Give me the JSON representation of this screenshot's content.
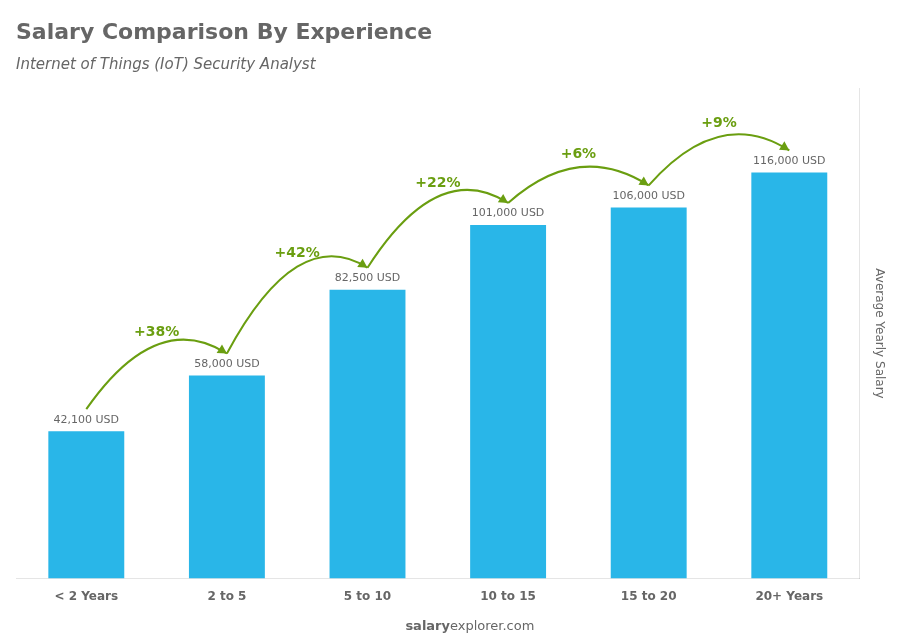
{
  "chart_data": {
    "type": "bar",
    "title": "Salary Comparison By Experience",
    "subtitle": "Internet of Things (IoT) Security Analyst",
    "categories": [
      "< 2 Years",
      "2 to 5",
      "5 to 10",
      "10 to 15",
      "15 to 20",
      "20+ Years"
    ],
    "values": [
      42100,
      58000,
      82500,
      101000,
      106000,
      116000
    ],
    "value_labels": [
      "42,100 USD",
      "58,000 USD",
      "82,500 USD",
      "101,000 USD",
      "106,000 USD",
      "116,000 USD"
    ],
    "data_labels": true,
    "annotations": [
      "+38%",
      "+42%",
      "+22%",
      "+6%",
      "+9%"
    ],
    "color": "#29b6e8",
    "ylabel": "Average Yearly Salary",
    "footer": [
      "salary",
      "explorer.com"
    ],
    "ylim": [
      0,
      140000
    ],
    "yticks": [],
    "tick_labels": "x",
    "grid": false
  }
}
